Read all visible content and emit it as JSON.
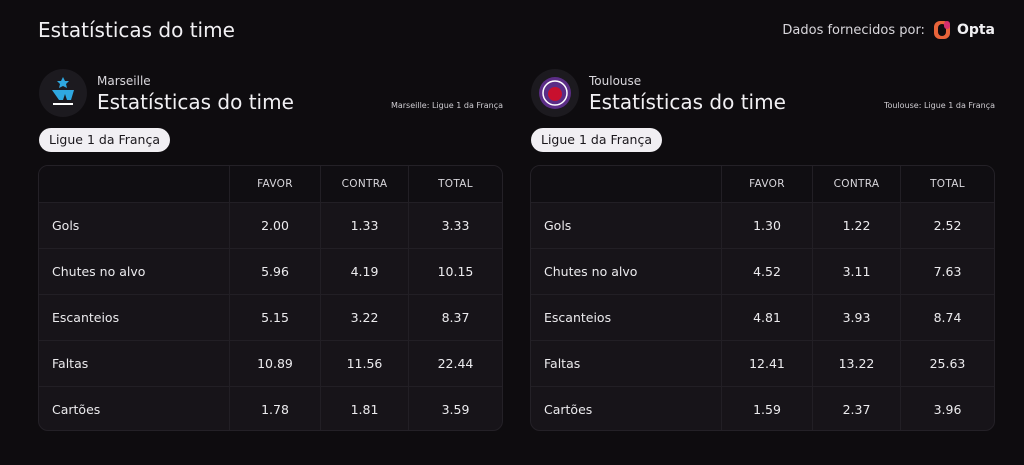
{
  "header": {
    "title": "Estatísticas do time",
    "provider_label": "Dados fornecidos por:",
    "provider_name": "Opta"
  },
  "panels": [
    {
      "team": "Marseille",
      "title": "Estatísticas do time",
      "note": "Marseille: Ligue 1 da França",
      "league": "Ligue 1 da França",
      "table": {
        "columns": [
          "FAVOR",
          "CONTRA",
          "TOTAL"
        ],
        "rows": [
          [
            "Gols",
            "2.00",
            "1.33",
            "3.33"
          ],
          [
            "Chutes no alvo",
            "5.96",
            "4.19",
            "10.15"
          ],
          [
            "Escanteios",
            "5.15",
            "3.22",
            "8.37"
          ],
          [
            "Faltas",
            "10.89",
            "11.56",
            "22.44"
          ],
          [
            "Cartões",
            "1.78",
            "1.81",
            "3.59"
          ]
        ]
      }
    },
    {
      "team": "Toulouse",
      "title": "Estatísticas do time",
      "note": "Toulouse: Ligue 1 da França",
      "league": "Ligue 1 da França",
      "table": {
        "columns": [
          "FAVOR",
          "CONTRA",
          "TOTAL"
        ],
        "rows": [
          [
            "Gols",
            "1.30",
            "1.22",
            "2.52"
          ],
          [
            "Chutes no alvo",
            "4.52",
            "3.11",
            "7.63"
          ],
          [
            "Escanteios",
            "4.81",
            "3.93",
            "8.74"
          ],
          [
            "Faltas",
            "12.41",
            "13.22",
            "25.63"
          ],
          [
            "Cartões",
            "1.59",
            "2.37",
            "3.96"
          ]
        ]
      }
    }
  ]
}
